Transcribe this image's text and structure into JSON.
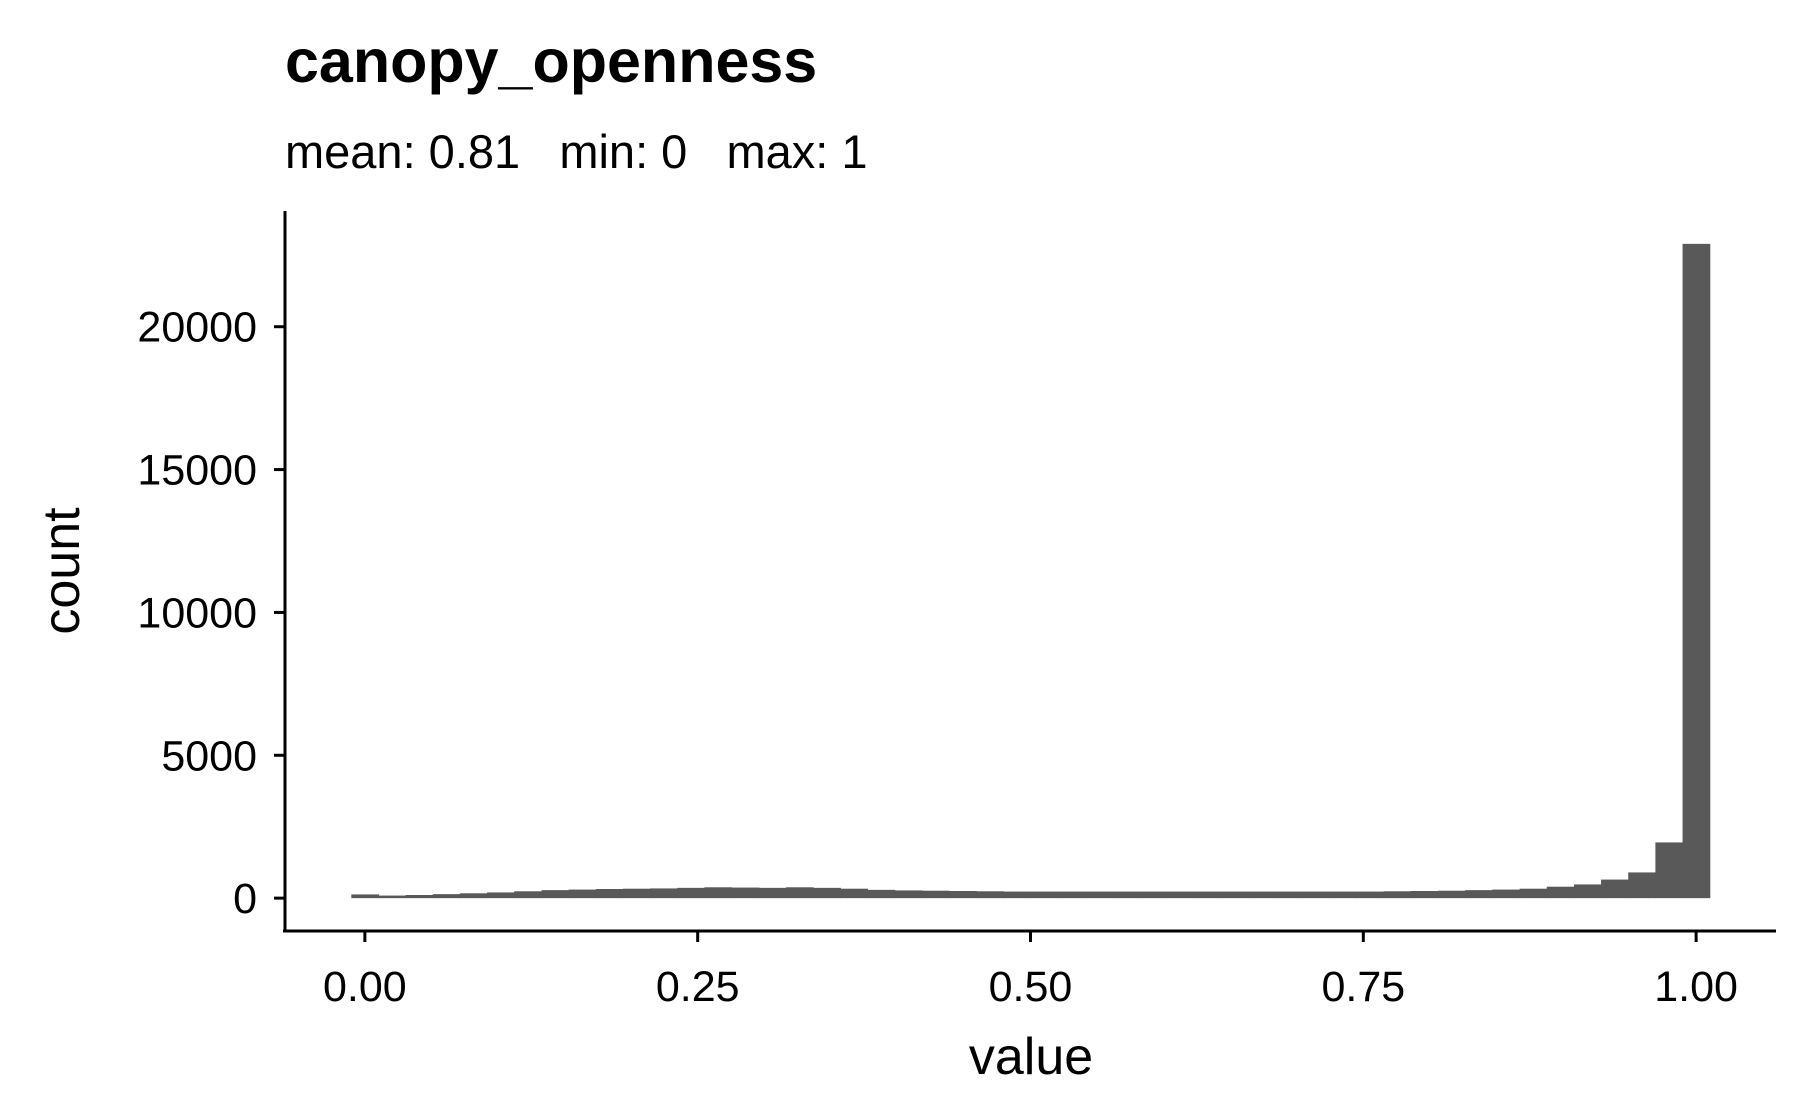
{
  "chart_data": {
    "type": "bar",
    "title": "canopy_openness",
    "subtitle": "mean: 0.81   min: 0   max: 1",
    "xlabel": "value",
    "ylabel": "count",
    "xlim": [
      -0.06,
      1.06
    ],
    "ylim": [
      -1150,
      24050
    ],
    "xticks": [
      0.0,
      0.25,
      0.5,
      0.75,
      1.0
    ],
    "xtick_labels": [
      "0.00",
      "0.25",
      "0.50",
      "0.75",
      "1.00"
    ],
    "yticks": [
      0,
      5000,
      10000,
      15000,
      20000
    ],
    "ytick_labels": [
      "0",
      "5000",
      "10000",
      "15000",
      "20000"
    ],
    "bin_width": 0.0204,
    "bin_centers": [
      0.0,
      0.0204,
      0.0408,
      0.0612,
      0.0816,
      0.102,
      0.1224,
      0.1429,
      0.1633,
      0.1837,
      0.2041,
      0.2245,
      0.2449,
      0.2653,
      0.2857,
      0.3061,
      0.3265,
      0.3469,
      0.3673,
      0.3878,
      0.4082,
      0.4286,
      0.449,
      0.4694,
      0.4898,
      0.5102,
      0.5306,
      0.551,
      0.5714,
      0.5918,
      0.6122,
      0.6327,
      0.6531,
      0.6735,
      0.6939,
      0.7143,
      0.7347,
      0.7551,
      0.7755,
      0.7959,
      0.8163,
      0.8367,
      0.8571,
      0.8776,
      0.898,
      0.9184,
      0.9388,
      0.9592,
      0.9796,
      1.0
    ],
    "values": [
      130,
      90,
      110,
      140,
      170,
      200,
      240,
      280,
      300,
      320,
      330,
      340,
      360,
      380,
      370,
      360,
      380,
      360,
      330,
      290,
      270,
      260,
      250,
      240,
      230,
      230,
      230,
      230,
      230,
      230,
      230,
      230,
      230,
      230,
      230,
      230,
      230,
      230,
      240,
      250,
      260,
      280,
      300,
      330,
      400,
      480,
      650,
      900,
      1950,
      22900
    ],
    "grid": false,
    "legend": "none"
  }
}
